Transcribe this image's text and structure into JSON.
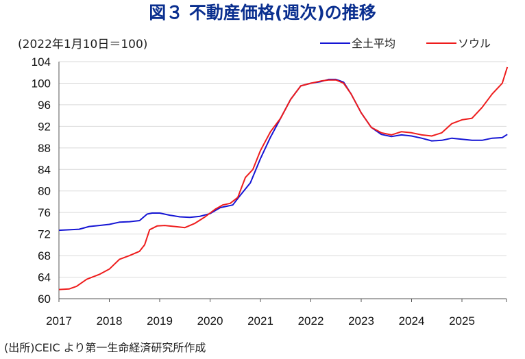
{
  "chart_data": {
    "type": "line",
    "title": "図３ 不動産価格(週次)の推移",
    "ylabel": "(2022年1月10日＝100)",
    "xlabel": "",
    "ylim": [
      60,
      104
    ],
    "yticks": [
      60,
      64,
      68,
      72,
      76,
      80,
      84,
      88,
      92,
      96,
      100,
      104
    ],
    "xlim": [
      2017,
      2025.9
    ],
    "xticks": [
      2017,
      2018,
      2019,
      2020,
      2021,
      2022,
      2023,
      2024,
      2025
    ],
    "xtick_labels": [
      "2017",
      "2018",
      "2019",
      "2020",
      "2021",
      "2022",
      "2023",
      "2024",
      "2025"
    ],
    "grid": true,
    "legend_position": "top-right",
    "series": [
      {
        "name": "全土平均",
        "color": "#1515d4",
        "x": [
          2017.0,
          2017.4,
          2017.6,
          2017.8,
          2018.0,
          2018.2,
          2018.4,
          2018.6,
          2018.75,
          2018.85,
          2019.0,
          2019.2,
          2019.4,
          2019.6,
          2019.8,
          2020.0,
          2020.2,
          2020.3,
          2020.45,
          2020.6,
          2020.8,
          2021.0,
          2021.2,
          2021.4,
          2021.6,
          2021.8,
          2022.0,
          2022.2,
          2022.35,
          2022.5,
          2022.65,
          2022.8,
          2023.0,
          2023.2,
          2023.4,
          2023.6,
          2023.8,
          2024.0,
          2024.2,
          2024.4,
          2024.6,
          2024.8,
          2025.0,
          2025.2,
          2025.4,
          2025.6,
          2025.8,
          2025.9
        ],
        "values": [
          72.7,
          72.9,
          73.4,
          73.6,
          73.8,
          74.2,
          74.3,
          74.5,
          75.7,
          75.9,
          75.9,
          75.5,
          75.2,
          75.1,
          75.3,
          75.8,
          76.9,
          77.1,
          77.4,
          79.2,
          81.5,
          86.0,
          90.0,
          93.5,
          97.0,
          99.5,
          100.0,
          100.3,
          100.7,
          100.7,
          100.2,
          98.0,
          94.5,
          91.8,
          90.5,
          90.1,
          90.4,
          90.2,
          89.8,
          89.3,
          89.4,
          89.8,
          89.6,
          89.4,
          89.4,
          89.8,
          89.9,
          90.5
        ]
      },
      {
        "name": "ソウル",
        "color": "#ee1c1c",
        "x": [
          2017.0,
          2017.2,
          2017.35,
          2017.55,
          2017.8,
          2018.0,
          2018.2,
          2018.4,
          2018.6,
          2018.7,
          2018.8,
          2018.95,
          2019.1,
          2019.3,
          2019.5,
          2019.7,
          2019.9,
          2020.1,
          2020.25,
          2020.4,
          2020.55,
          2020.7,
          2020.85,
          2021.0,
          2021.2,
          2021.4,
          2021.6,
          2021.8,
          2022.0,
          2022.2,
          2022.35,
          2022.5,
          2022.65,
          2022.8,
          2023.0,
          2023.2,
          2023.4,
          2023.6,
          2023.8,
          2024.0,
          2024.2,
          2024.4,
          2024.6,
          2024.8,
          2025.0,
          2025.2,
          2025.4,
          2025.6,
          2025.8,
          2025.9
        ],
        "values": [
          61.7,
          61.8,
          62.3,
          63.6,
          64.5,
          65.5,
          67.3,
          68.0,
          68.8,
          70.0,
          72.8,
          73.5,
          73.6,
          73.4,
          73.2,
          74.0,
          75.2,
          76.6,
          77.4,
          77.7,
          78.8,
          82.5,
          84.0,
          87.5,
          91.0,
          93.5,
          97.0,
          99.5,
          100.0,
          100.4,
          100.6,
          100.6,
          100.0,
          98.0,
          94.5,
          91.8,
          90.8,
          90.4,
          91.0,
          90.8,
          90.4,
          90.2,
          90.8,
          92.5,
          93.2,
          93.5,
          95.5,
          98.0,
          100.0,
          103.0
        ]
      }
    ]
  },
  "source_text": "(出所)CEIC より第一生命経済研究所作成"
}
